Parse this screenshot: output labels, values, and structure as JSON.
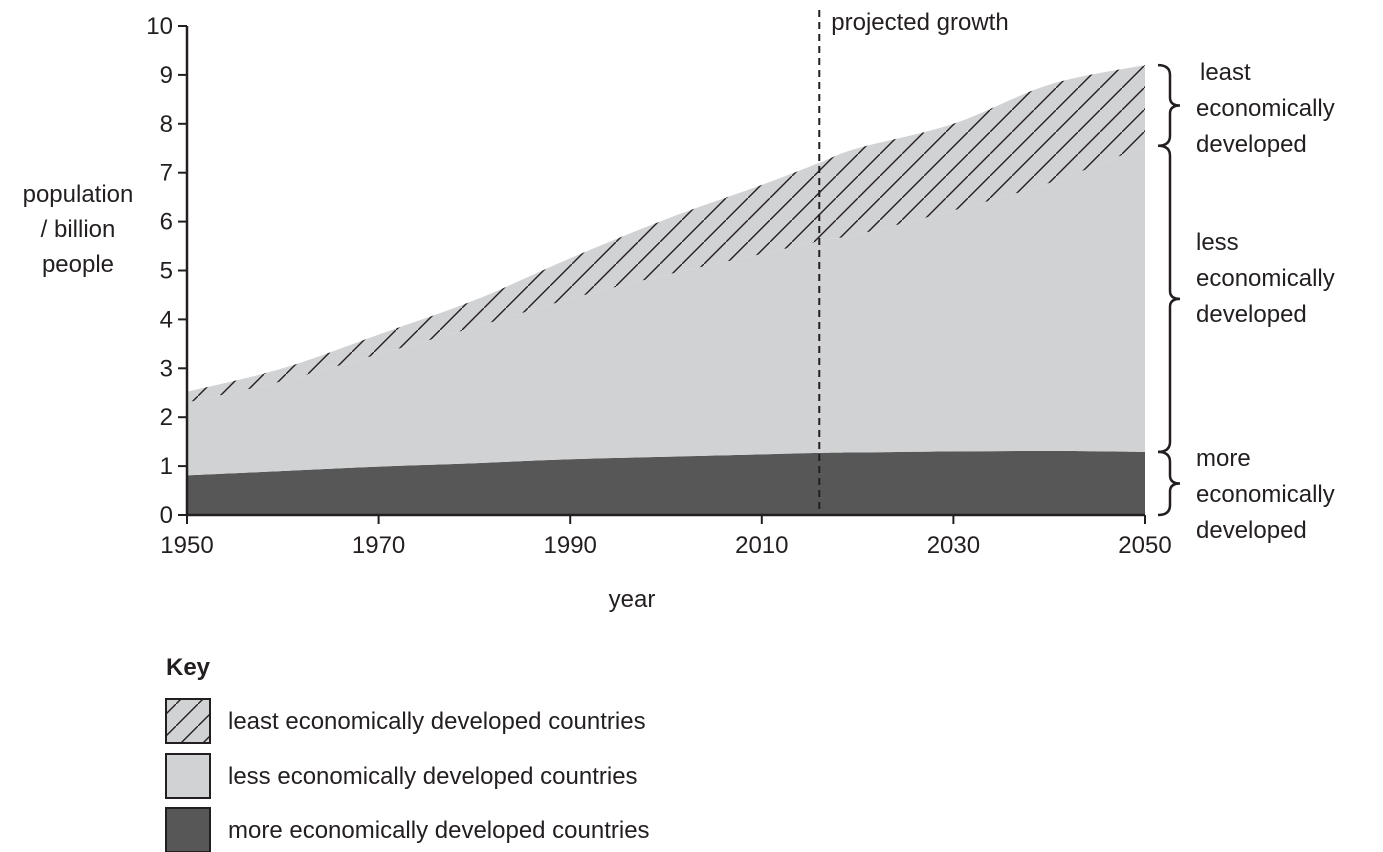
{
  "chart_data": {
    "type": "area",
    "stacked": true,
    "title": "",
    "xlabel": "year",
    "ylabel_lines": [
      "population",
      "/ billion",
      "people"
    ],
    "xlim": [
      1950,
      2050
    ],
    "ylim": [
      0,
      10
    ],
    "x_ticks": [
      1950,
      1970,
      1990,
      2010,
      2030,
      2050
    ],
    "y_ticks": [
      0,
      1,
      2,
      3,
      4,
      5,
      6,
      7,
      8,
      9,
      10
    ],
    "grid": false,
    "x": [
      1950,
      1960,
      1970,
      1980,
      1990,
      2000,
      2010,
      2016,
      2020,
      2030,
      2040,
      2050
    ],
    "series": [
      {
        "name": "more economically developed countries",
        "fill": "#575757",
        "pattern": "solid",
        "values": [
          0.81,
          0.9,
          0.99,
          1.06,
          1.14,
          1.19,
          1.24,
          1.27,
          1.28,
          1.3,
          1.31,
          1.29
        ]
      },
      {
        "name": "less economically developed countries",
        "fill": "#d1d2d4",
        "pattern": "solid",
        "values": [
          1.49,
          1.84,
          2.3,
          2.78,
          3.28,
          3.72,
          4.1,
          4.33,
          4.46,
          4.93,
          5.48,
          6.26
        ]
      },
      {
        "name": "least economically developed countries",
        "fill": "#d1d2d4",
        "pattern": "hatch",
        "values": [
          0.22,
          0.26,
          0.4,
          0.55,
          0.83,
          1.14,
          1.41,
          1.6,
          1.76,
          1.77,
          2.01,
          1.65
        ]
      }
    ],
    "projection_line": {
      "x": 2016,
      "label": "projected growth"
    },
    "bracket_labels": [
      {
        "lines": [
          "least",
          "economically",
          "developed"
        ]
      },
      {
        "lines": [
          "less",
          "economically",
          "developed"
        ]
      },
      {
        "lines": [
          "more",
          "economically",
          "developed"
        ]
      }
    ],
    "legend": {
      "title": "Key",
      "position": "bottom-left",
      "items": [
        {
          "label": "least economically developed countries",
          "pattern": "hatch"
        },
        {
          "label": "less economically developed countries",
          "pattern": "light"
        },
        {
          "label": "more economically developed countries",
          "pattern": "dark"
        }
      ]
    }
  }
}
